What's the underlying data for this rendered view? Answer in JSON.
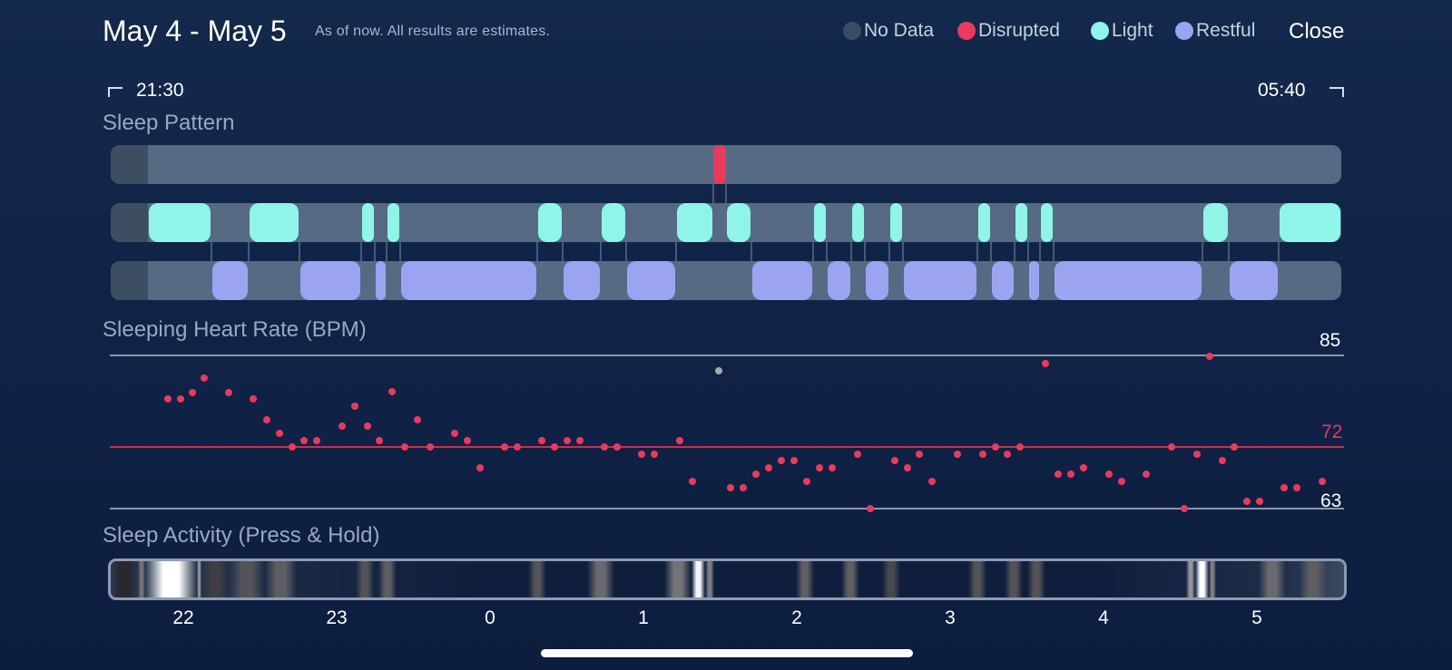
{
  "header": {
    "title": "May 4 - May 5",
    "subtitle": "As of now. All results are estimates.",
    "close_label": "Close"
  },
  "legend": [
    {
      "label": "No Data",
      "color": "#3b4b63"
    },
    {
      "label": "Disrupted",
      "color": "#e93a5c"
    },
    {
      "label": "Light",
      "color": "#8ff5e8"
    },
    {
      "label": "Restful",
      "color": "#9ca4f2"
    }
  ],
  "time_range": {
    "start": "21:30",
    "end": "05:40"
  },
  "sections": {
    "sleep_pattern": "Sleep Pattern",
    "heart_rate": "Sleeping Heart Rate (BPM)",
    "activity": "Sleep Activity (Press & Hold)"
  },
  "heart_rate": {
    "max_label": "85",
    "avg_label": "72",
    "min_label": "63",
    "max": 85,
    "avg": 72,
    "min": 63
  },
  "x_ticks": [
    "22",
    "23",
    "0",
    "1",
    "2",
    "3",
    "4",
    "5"
  ],
  "colors": {
    "disrupted": "#e93a5c",
    "light": "#8ff5e8",
    "restful": "#9ca4f2",
    "no_data": "#3b4b63",
    "track": "#566a84"
  }
}
